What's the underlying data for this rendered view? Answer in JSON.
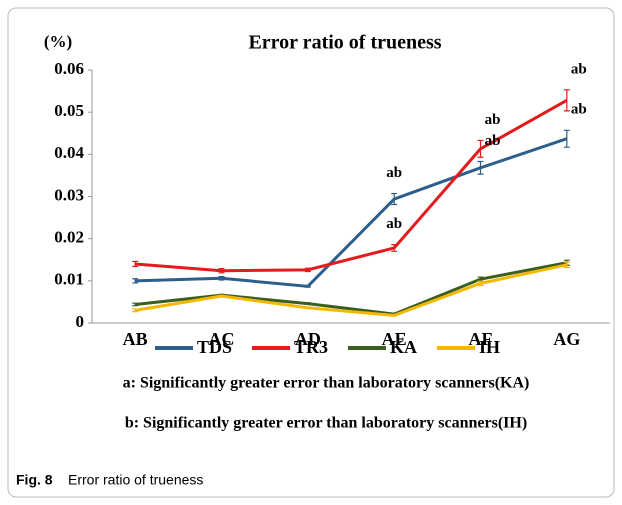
{
  "chart_data": {
    "type": "line",
    "title": "Error ratio of trueness",
    "y_unit": "(%)",
    "categories": [
      "AB",
      "AC",
      "AD",
      "AE",
      "AF",
      "AG"
    ],
    "series": [
      {
        "name": "TDS",
        "color": "#2e5f8a",
        "values": [
          0.01,
          0.0106,
          0.0087,
          0.0294,
          0.0368,
          0.0437
        ],
        "errors": [
          0.0005,
          0.0004,
          0.0002,
          0.0013,
          0.0015,
          0.002
        ]
      },
      {
        "name": "TR3",
        "color": "#e41a1c",
        "values": [
          0.014,
          0.0124,
          0.0126,
          0.0178,
          0.0413,
          0.0528
        ],
        "errors": [
          0.0006,
          0.0005,
          0.0004,
          0.0008,
          0.002,
          0.0025
        ]
      },
      {
        "name": "KA",
        "color": "#3b5e1f",
        "values": [
          0.0044,
          0.0066,
          0.0046,
          0.0021,
          0.0104,
          0.0143
        ],
        "errors": [
          0.0003,
          0.0002,
          0.0002,
          0.0001,
          0.0005,
          0.0006
        ]
      },
      {
        "name": "IH",
        "color": "#f5b800",
        "values": [
          0.003,
          0.0064,
          0.0036,
          0.0018,
          0.0094,
          0.0138
        ],
        "errors": [
          0.0003,
          0.0002,
          0.0002,
          0.0001,
          0.0005,
          0.0006
        ]
      }
    ],
    "annotations": [
      {
        "text": "ab",
        "category": "AE",
        "series": "TDS"
      },
      {
        "text": "ab",
        "category": "AE",
        "series": "TR3"
      },
      {
        "text": "ab",
        "category": "AF",
        "series": "TR3"
      },
      {
        "text": "ab",
        "category": "AF",
        "series": "TDS"
      },
      {
        "text": "ab",
        "category": "AG",
        "series": "TR3"
      },
      {
        "text": "ab",
        "category": "AG",
        "series": "TDS"
      }
    ],
    "notes": [
      "a: Significantly greater error than laboratory scanners(KA)",
      "b: Significantly greater error than laboratory scanners(IH)"
    ],
    "ylim": [
      0,
      0.06
    ],
    "yticks": [
      0,
      0.01,
      0.02,
      0.03,
      0.04,
      0.05,
      0.06
    ],
    "legend": "bottom"
  },
  "caption": {
    "label": "Fig. 8",
    "text": "Error ratio of trueness"
  }
}
